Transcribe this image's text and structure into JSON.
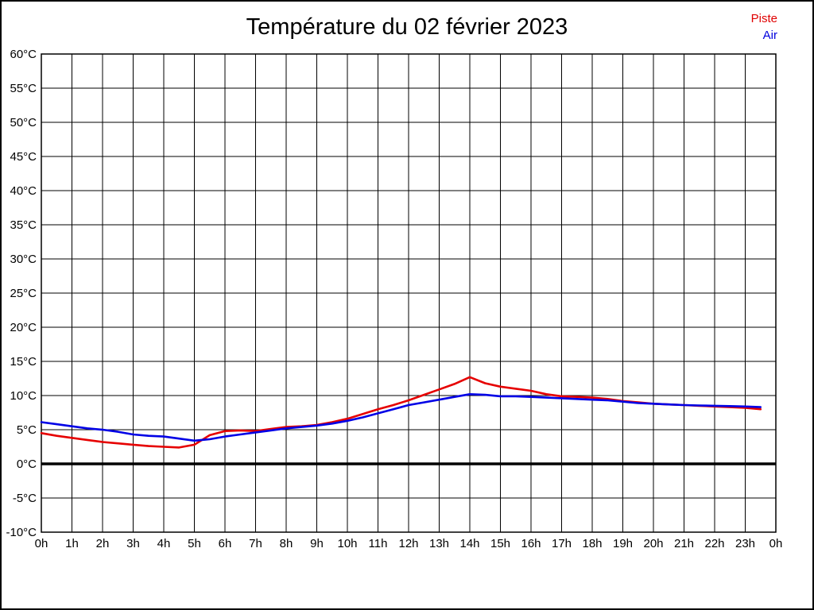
{
  "title": "Température du 02 février 2023",
  "legend": [
    {
      "label": "Piste",
      "color": "#e00000"
    },
    {
      "label": "Air",
      "color": "#0000dd"
    }
  ],
  "colors": {
    "grid": "#000000",
    "frame": "#000000",
    "zero_line": "#000000",
    "background": "#ffffff",
    "piste_line": "#e60000",
    "air_line": "#0000e6"
  },
  "chart_data": {
    "type": "line",
    "title": "Température du 02 février 2023",
    "xlabel": "",
    "ylabel": "",
    "xlim": [
      0,
      24
    ],
    "ylim": [
      -10,
      60
    ],
    "y_tick_step": 5,
    "grid": true,
    "zero_line_emphasis": true,
    "legend_position": "top-right",
    "x_tick_labels": [
      "0h",
      "1h",
      "2h",
      "3h",
      "4h",
      "5h",
      "6h",
      "7h",
      "8h",
      "9h",
      "10h",
      "11h",
      "12h",
      "13h",
      "14h",
      "15h",
      "16h",
      "17h",
      "18h",
      "19h",
      "20h",
      "21h",
      "22h",
      "23h",
      "0h"
    ],
    "y_tick_labels": [
      "60°C",
      "55°C",
      "50°C",
      "45°C",
      "40°C",
      "35°C",
      "30°C",
      "25°C",
      "20°C",
      "15°C",
      "10°C",
      "5°C",
      "0°C",
      "-5°C",
      "-10°C"
    ],
    "x": [
      0,
      0.5,
      1,
      1.5,
      2,
      2.5,
      3,
      3.5,
      4,
      4.5,
      5,
      5.5,
      6,
      6.5,
      7,
      7.5,
      8,
      8.5,
      9,
      9.5,
      10,
      10.5,
      11,
      11.5,
      12,
      12.5,
      13,
      13.5,
      14,
      14.5,
      15,
      15.5,
      16,
      16.5,
      17,
      17.5,
      18,
      18.5,
      19,
      19.5,
      20,
      20.5,
      21,
      21.5,
      22,
      22.5,
      23,
      23.5
    ],
    "series": [
      {
        "name": "Piste",
        "color": "#e60000",
        "values": [
          4.5,
          4.1,
          3.8,
          3.5,
          3.2,
          3.0,
          2.8,
          2.6,
          2.5,
          2.4,
          2.8,
          4.2,
          4.8,
          4.9,
          4.8,
          5.1,
          5.4,
          5.5,
          5.7,
          6.1,
          6.6,
          7.3,
          8.0,
          8.6,
          9.3,
          10.1,
          10.9,
          11.7,
          12.7,
          11.8,
          11.3,
          11.0,
          10.7,
          10.2,
          9.9,
          9.8,
          9.7,
          9.5,
          9.2,
          9.0,
          8.8,
          8.7,
          8.6,
          8.5,
          8.4,
          8.3,
          8.2,
          8.0
        ]
      },
      {
        "name": "Air",
        "color": "#0000e6",
        "values": [
          6.1,
          5.8,
          5.5,
          5.2,
          5.0,
          4.7,
          4.3,
          4.1,
          4.0,
          3.7,
          3.4,
          3.6,
          4.0,
          4.3,
          4.6,
          4.9,
          5.2,
          5.4,
          5.6,
          5.9,
          6.3,
          6.8,
          7.4,
          8.0,
          8.6,
          9.0,
          9.4,
          9.8,
          10.2,
          10.1,
          9.9,
          9.9,
          9.8,
          9.7,
          9.6,
          9.5,
          9.4,
          9.3,
          9.1,
          8.9,
          8.8,
          8.7,
          8.6,
          8.55,
          8.5,
          8.45,
          8.4,
          8.3
        ]
      }
    ]
  }
}
